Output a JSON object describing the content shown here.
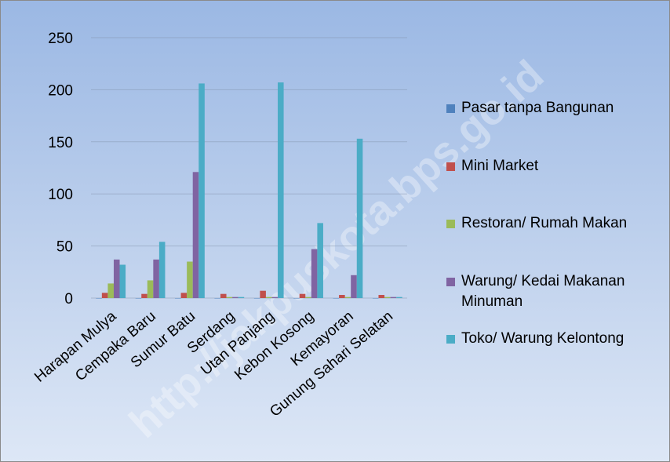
{
  "chart_data": {
    "type": "bar",
    "watermark": "http://jakpuskota.bps.go.id",
    "categories": [
      "Harapan Mulya",
      "Cempaka Baru",
      "Sumur Batu",
      "Serdang",
      "Utan Panjang",
      "Kebon Kosong",
      "Kemayoran",
      "Gunung Sahari Selatan"
    ],
    "series": [
      {
        "name": "Pasar tanpa Bangunan",
        "color": "#4f81bd",
        "values": [
          0,
          0,
          0,
          0,
          0,
          0,
          0,
          0
        ]
      },
      {
        "name": "Mini Market",
        "color": "#c0504d",
        "values": [
          5,
          4,
          5,
          4,
          7,
          4,
          3,
          3
        ]
      },
      {
        "name": "Restoran/ Rumah Makan",
        "color": "#9bbb59",
        "values": [
          14,
          17,
          35,
          1,
          1,
          1,
          1,
          1
        ]
      },
      {
        "name": "Warung/ Kedai Makanan Minuman",
        "color": "#8064a2",
        "values": [
          37,
          37,
          121,
          1,
          1,
          47,
          22,
          1
        ]
      },
      {
        "name": "Toko/ Warung Kelontong",
        "color": "#4bacc6",
        "values": [
          32,
          54,
          206,
          1,
          207,
          72,
          153,
          1
        ]
      }
    ],
    "ylim": [
      0,
      250
    ],
    "yticks": [
      0,
      50,
      100,
      150,
      200,
      250
    ],
    "grid": true
  }
}
